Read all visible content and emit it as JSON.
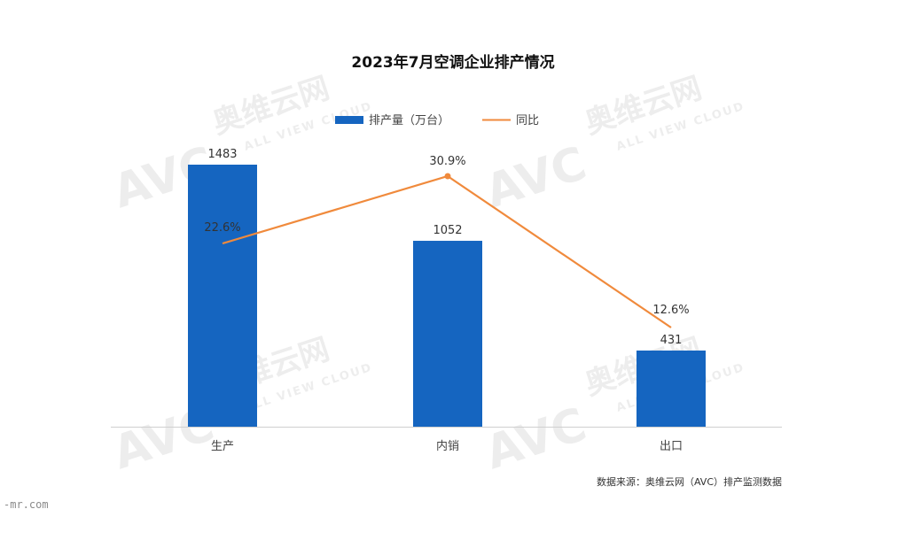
{
  "chart_data": {
    "type": "bar",
    "title": "2023年7月空调企业排产情况",
    "categories": [
      "生产",
      "内销",
      "出口"
    ],
    "series": [
      {
        "name": "排产量（万台）",
        "type": "bar",
        "values": [
          1483,
          1052,
          431
        ],
        "labels": [
          "1483",
          "1052",
          "431"
        ],
        "color": "#1565c0"
      },
      {
        "name": "同比",
        "type": "line",
        "values": [
          22.6,
          30.9,
          12.6
        ],
        "labels": [
          "22.6%",
          "30.9%",
          "12.6%"
        ],
        "color": "#f08a3c"
      }
    ],
    "ylim": [
      0,
      1483
    ],
    "legend_position": "top-center",
    "grid": false
  },
  "source_note": "数据来源：奥维云网（AVC）排产监测数据",
  "corner_text": "-mr.com",
  "watermark": {
    "brand_cn": "奥维云网",
    "brand_en": "ALL VIEW CLOUD",
    "logo": "AVC"
  },
  "colors": {
    "bar": "#1565c0",
    "line": "#f08a3c",
    "axis": "#d0d0d0"
  }
}
